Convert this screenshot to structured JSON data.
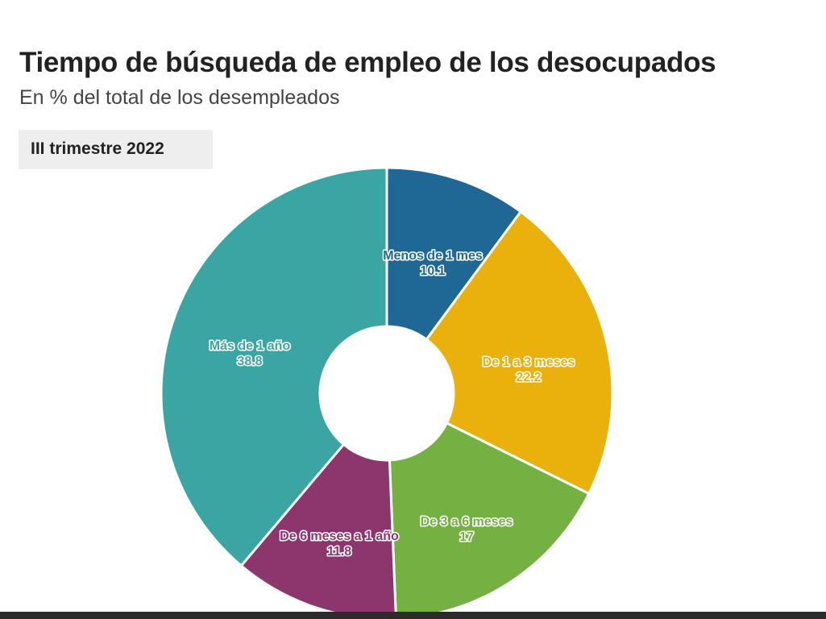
{
  "header": {
    "title": "Tiempo de búsqueda de empleo de los desocupados",
    "subtitle": "En % del total de los desempleados"
  },
  "tabs": [
    {
      "label": "III trimestre 2022",
      "active": true
    }
  ],
  "chart_data": {
    "type": "pie",
    "variant": "donut",
    "title": "Tiempo de búsqueda de empleo de los desocupados",
    "subtitle": "En % del total de los desempleados",
    "slices": [
      {
        "label": "Menos de 1 mes",
        "value": 10.1,
        "value_label": "10.1",
        "color": "#1f6794"
      },
      {
        "label": "De 1 a 3 meses",
        "value": 22.2,
        "value_label": "22.2",
        "color": "#eab00b"
      },
      {
        "label": "De 3 a 6 meses",
        "value": 17,
        "value_label": "17",
        "color": "#75b043"
      },
      {
        "label": "De 6 meses a 1 año",
        "value": 11.8,
        "value_label": "11.8",
        "color": "#8d356d"
      },
      {
        "label": "Más de 1 año",
        "value": 38.8,
        "value_label": "38.8",
        "color": "#3aa5a3"
      }
    ]
  }
}
